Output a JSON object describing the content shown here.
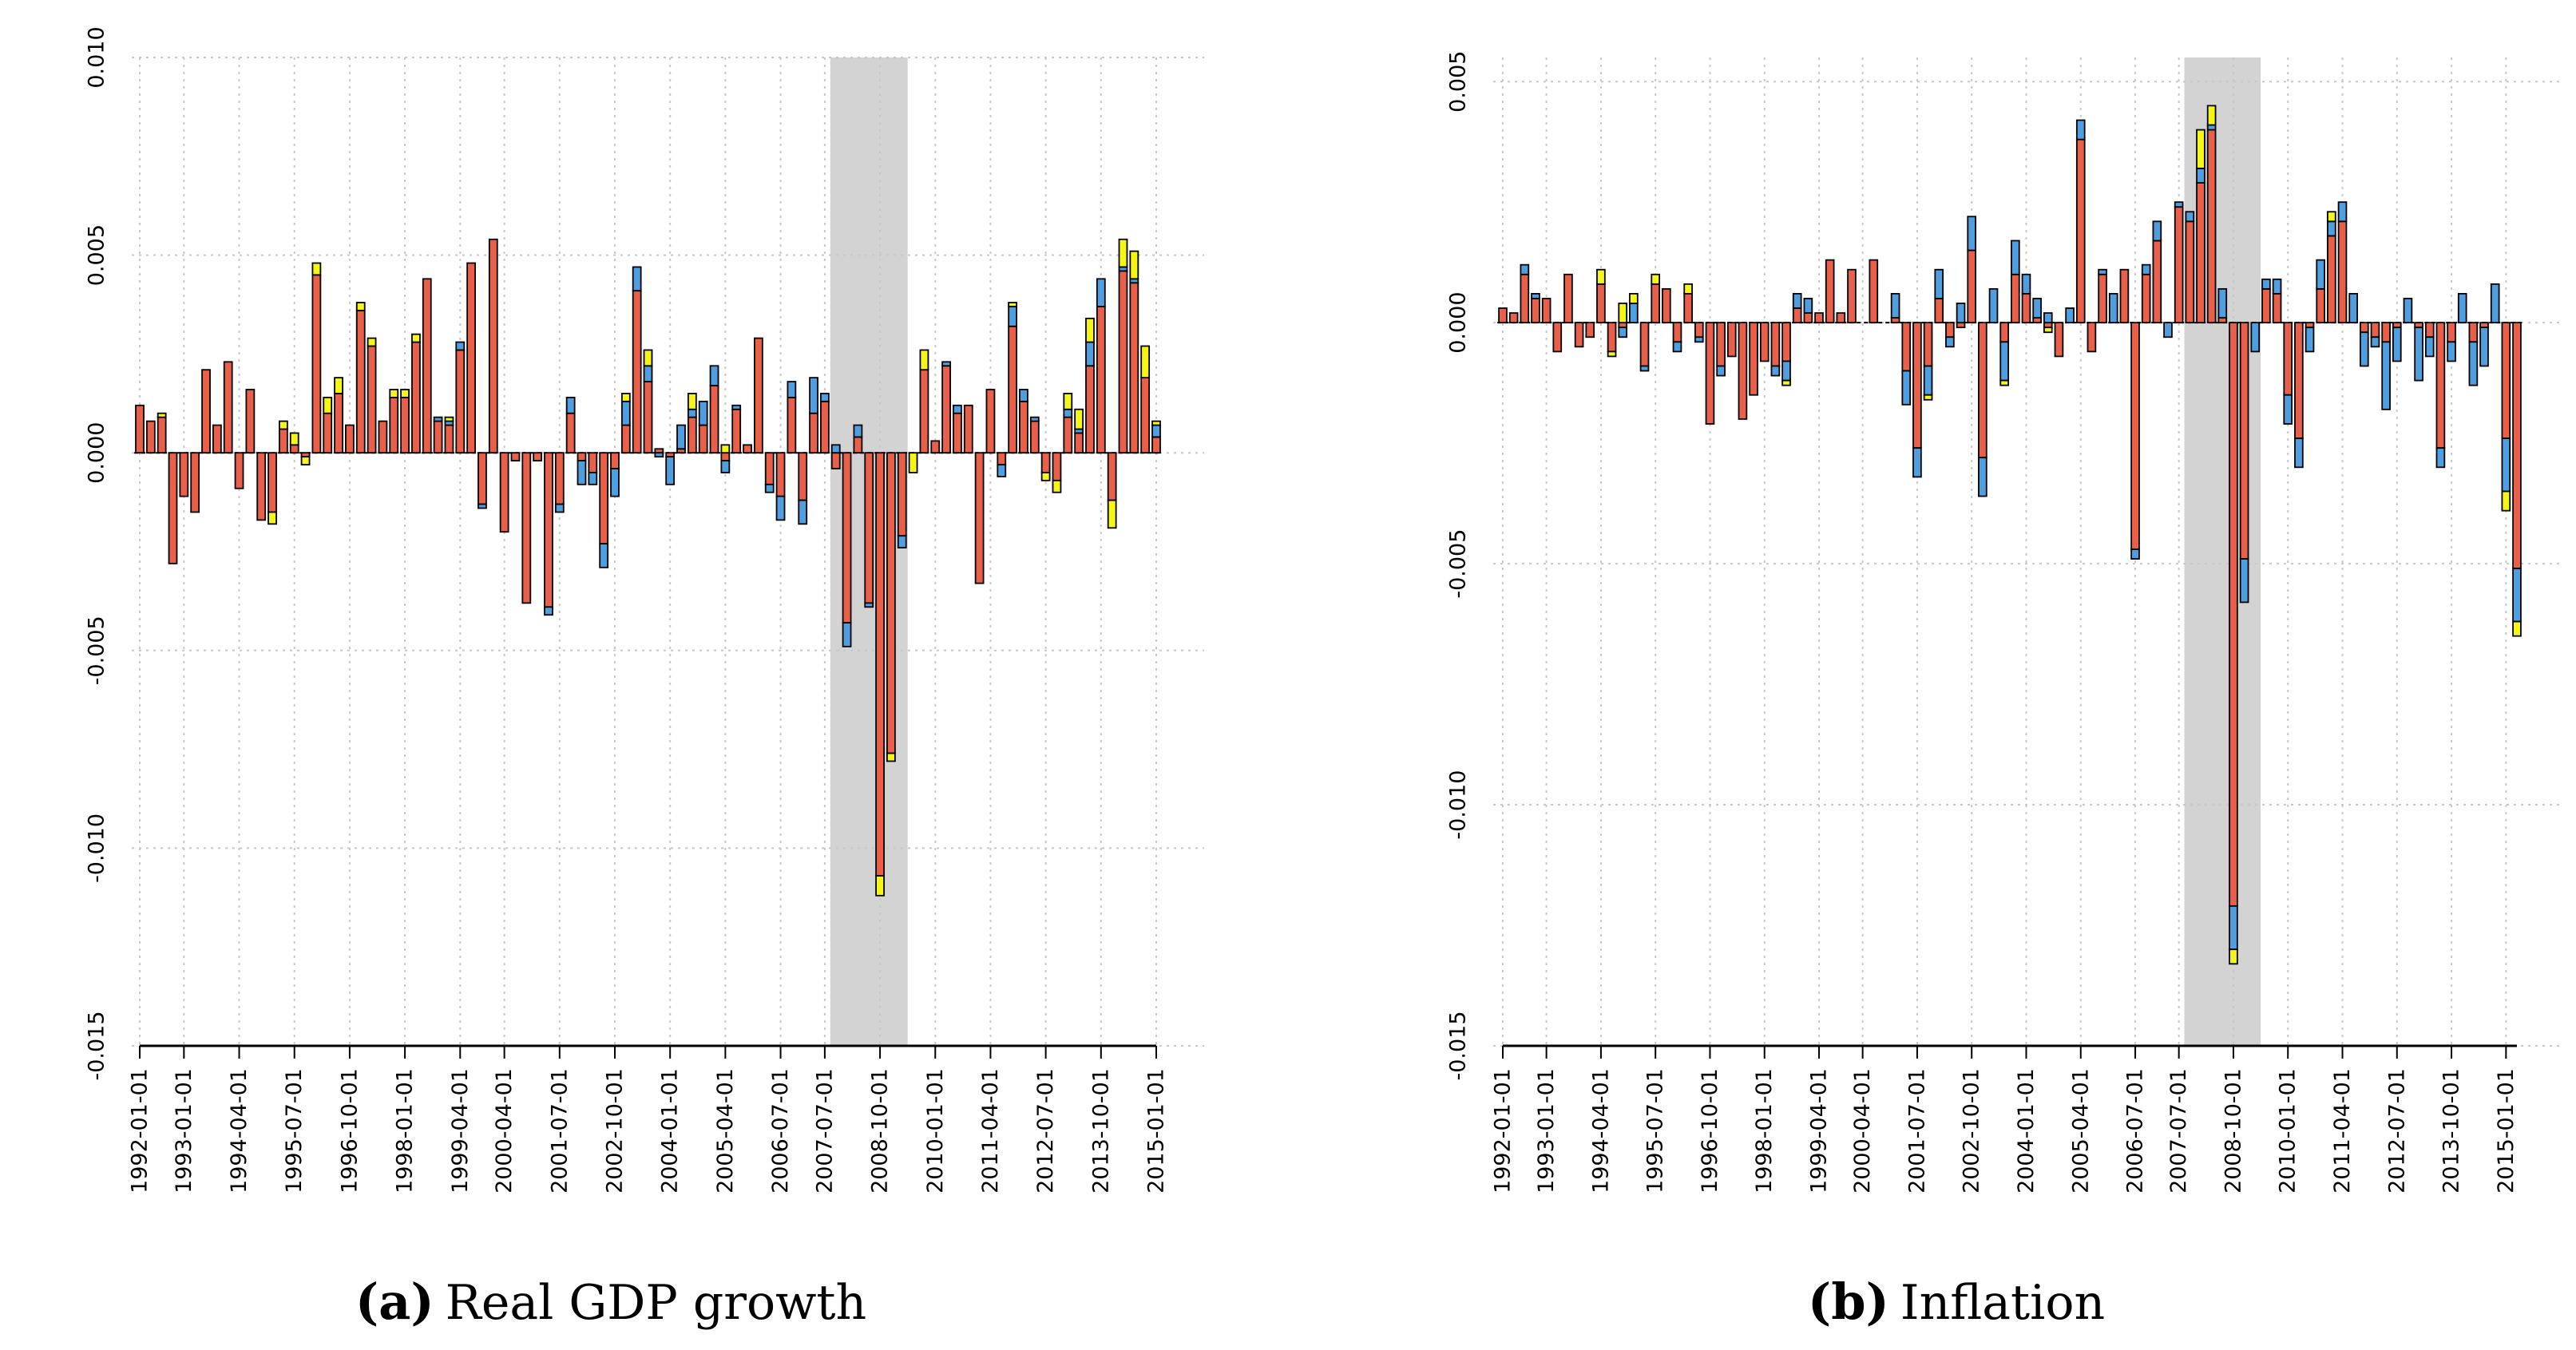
{
  "colors": {
    "red": "#e9604a",
    "blue": "#4f9fe0",
    "yellow": "#f5f518",
    "grid": "#c8c8c8",
    "recession": "#d3d3d3"
  },
  "chart_data": [
    {
      "type": "bar",
      "panel_letter": "(a)",
      "title": "Real GDP growth",
      "ylim": [
        -0.015,
        0.01
      ],
      "y_ticks": [
        "0.010",
        "0.005",
        "0.000",
        "-0.005",
        "-0.010",
        "-0.015"
      ],
      "y_tick_values": [
        0.01,
        0.005,
        0.0,
        -0.005,
        -0.01,
        -0.015
      ],
      "x_tick_labels": [
        "1992-01-01",
        "1993-01-01",
        "1994-04-01",
        "1995-07-01",
        "1996-10-01",
        "1998-01-01",
        "1999-04-01",
        "2000-04-01",
        "2001-07-01",
        "2002-10-01",
        "2004-01-01",
        "2005-04-01",
        "2006-07-01",
        "2007-07-01",
        "2008-10-01",
        "2010-01-01",
        "2011-04-01",
        "2012-07-01",
        "2013-10-01",
        "2015-01-01"
      ],
      "x_tick_index": [
        0,
        4,
        9,
        14,
        19,
        24,
        29,
        33,
        38,
        43,
        48,
        53,
        58,
        62,
        67,
        72,
        77,
        82,
        87,
        92
      ],
      "recession_index": [
        63,
        69
      ],
      "series_names": [
        "red",
        "blue",
        "yellow"
      ],
      "values": [
        [
          0.0012,
          0,
          0
        ],
        [
          0.0008,
          0,
          0
        ],
        [
          0.0009,
          0,
          0.0001
        ],
        [
          -0.0028,
          0,
          0
        ],
        [
          -0.0011,
          0,
          0
        ],
        [
          -0.0015,
          0,
          0
        ],
        [
          0.0021,
          0,
          0
        ],
        [
          0.0007,
          0,
          0
        ],
        [
          0.0023,
          0,
          0
        ],
        [
          -0.0009,
          0,
          0
        ],
        [
          0.0016,
          0,
          0
        ],
        [
          -0.0017,
          0,
          0
        ],
        [
          -0.0015,
          0,
          -0.0003
        ],
        [
          0.0006,
          0,
          0.0002
        ],
        [
          0.0002,
          0,
          0.0003
        ],
        [
          -0.0001,
          0,
          -0.0002
        ],
        [
          0.0045,
          0,
          0.0003
        ],
        [
          0.001,
          0,
          0.0004
        ],
        [
          0.0015,
          0,
          0.0004
        ],
        [
          0.0007,
          0,
          0
        ],
        [
          0.0036,
          0,
          0.0002
        ],
        [
          0.0027,
          0,
          0.0002
        ],
        [
          0.0008,
          0,
          0
        ],
        [
          0.0014,
          0,
          0.0002
        ],
        [
          0.0014,
          0,
          0.0002
        ],
        [
          0.0028,
          0,
          0.0002
        ],
        [
          0.0044,
          0,
          0
        ],
        [
          0.0008,
          0.0001,
          0
        ],
        [
          0.0007,
          0.0001,
          0.0001
        ],
        [
          0.0026,
          0.0002,
          0
        ],
        [
          0.0048,
          0,
          0
        ],
        [
          -0.0013,
          -0.0001,
          0
        ],
        [
          0.0054,
          0,
          0
        ],
        [
          -0.002,
          0,
          0
        ],
        [
          -0.0002,
          0,
          0
        ],
        [
          -0.0038,
          0,
          0
        ],
        [
          -0.0002,
          0,
          0
        ],
        [
          -0.0039,
          -0.0002,
          0
        ],
        [
          -0.0013,
          -0.0002,
          0
        ],
        [
          0.001,
          0.0004,
          0
        ],
        [
          -0.0002,
          -0.0006,
          0
        ],
        [
          -0.0005,
          -0.0003,
          0
        ],
        [
          -0.0023,
          -0.0006,
          0
        ],
        [
          -0.0004,
          -0.0007,
          0
        ],
        [
          0.0007,
          0.0006,
          0.0002
        ],
        [
          0.0041,
          0.0006,
          0
        ],
        [
          0.0018,
          0.0004,
          0.0004
        ],
        [
          0.0001,
          -0.0001,
          0
        ],
        [
          -0.0001,
          -0.0007,
          0
        ],
        [
          0.0001,
          0.0006,
          0
        ],
        [
          0.0009,
          0.0002,
          0.0004
        ],
        [
          0.0007,
          0.0006,
          0
        ],
        [
          0.0017,
          0.0005,
          0
        ],
        [
          -0.0002,
          -0.0003,
          0.0002
        ],
        [
          0.0011,
          0.0001,
          0
        ],
        [
          0.0002,
          0,
          0
        ],
        [
          0.0029,
          0,
          0
        ],
        [
          -0.0008,
          -0.0002,
          0
        ],
        [
          -0.0011,
          -0.0006,
          0
        ],
        [
          0.0014,
          0.0004,
          0
        ],
        [
          -0.0012,
          -0.0006,
          0
        ],
        [
          0.001,
          0.0009,
          0
        ],
        [
          0.0013,
          0.0002,
          0
        ],
        [
          -0.0004,
          0.0002,
          0
        ],
        [
          -0.0043,
          -0.0006,
          0
        ],
        [
          0.0004,
          0.0003,
          0
        ],
        [
          -0.0038,
          -0.0001,
          0
        ],
        [
          -0.0107,
          0,
          -0.0005
        ],
        [
          -0.0076,
          0,
          -0.0002
        ],
        [
          -0.0021,
          -0.0003,
          0
        ],
        [
          0,
          0,
          -0.0005
        ],
        [
          0.0021,
          0,
          0.0005
        ],
        [
          0.0003,
          0,
          0
        ],
        [
          0.0022,
          0.0001,
          0
        ],
        [
          0.001,
          0.0002,
          0
        ],
        [
          0.0012,
          0,
          0
        ],
        [
          -0.0033,
          0,
          0
        ],
        [
          0.0016,
          0,
          0
        ],
        [
          -0.0003,
          -0.0003,
          0
        ],
        [
          0.0032,
          0.0005,
          0.0001
        ],
        [
          0.0013,
          0.0003,
          0
        ],
        [
          0.0008,
          0.0001,
          0
        ],
        [
          -0.0005,
          0,
          -0.0002
        ],
        [
          -0.0007,
          0,
          -0.0003
        ],
        [
          0.0009,
          0.0002,
          0.0004
        ],
        [
          0.0005,
          0.0001,
          0.0005
        ],
        [
          0.0022,
          0.0006,
          0.0006
        ],
        [
          0.0037,
          0.0007,
          0
        ],
        [
          -0.0012,
          0,
          -0.0007
        ],
        [
          0.0046,
          0.0001,
          0.0007
        ],
        [
          0.0043,
          0.0001,
          0.0007
        ],
        [
          0.0019,
          0,
          0.0008
        ],
        [
          0.0004,
          0.0003,
          0.0001
        ]
      ]
    },
    {
      "type": "bar",
      "panel_letter": "(b)",
      "title": "Inflation",
      "ylim": [
        -0.015,
        0.0055
      ],
      "y_ticks": [
        "0.005",
        "0.000",
        "-0.005",
        "-0.010",
        "-0.015"
      ],
      "y_tick_values": [
        0.005,
        0.0,
        -0.005,
        -0.01,
        -0.015
      ],
      "x_tick_labels": [
        "1992-01-01",
        "1993-01-01",
        "1994-04-01",
        "1995-07-01",
        "1996-10-01",
        "1998-01-01",
        "1999-04-01",
        "2000-04-01",
        "2001-07-01",
        "2002-10-01",
        "2004-01-01",
        "2005-04-01",
        "2006-07-01",
        "2007-07-01",
        "2008-10-01",
        "2010-01-01",
        "2011-04-01",
        "2012-07-01",
        "2013-10-01",
        "2015-01-01"
      ],
      "x_tick_index": [
        0,
        4,
        9,
        14,
        19,
        24,
        29,
        33,
        38,
        43,
        48,
        53,
        58,
        62,
        67,
        72,
        77,
        82,
        87,
        92
      ],
      "recession_index": [
        63,
        69
      ],
      "series_names": [
        "red",
        "blue",
        "yellow"
      ],
      "values": [
        [
          0.0003,
          0,
          0
        ],
        [
          0.0002,
          0,
          0
        ],
        [
          0.001,
          0.0002,
          0
        ],
        [
          0.0005,
          0.0001,
          0
        ],
        [
          0.0005,
          0,
          0
        ],
        [
          -0.0006,
          0,
          0
        ],
        [
          0.001,
          0,
          0
        ],
        [
          -0.0005,
          0,
          0
        ],
        [
          -0.0003,
          0,
          0
        ],
        [
          0.0008,
          0,
          0.0003
        ],
        [
          -0.0006,
          0,
          -0.0001
        ],
        [
          -0.0001,
          -0.0002,
          0.0004
        ],
        [
          0,
          0.0004,
          0.0002
        ],
        [
          -0.0009,
          -0.0001,
          0
        ],
        [
          0.0008,
          0,
          0.0002
        ],
        [
          0.0007,
          0,
          0
        ],
        [
          -0.0004,
          -0.0002,
          0
        ],
        [
          0.0006,
          0,
          0.0002
        ],
        [
          -0.0003,
          -0.0001,
          0
        ],
        [
          -0.0021,
          0,
          0
        ],
        [
          -0.0009,
          -0.0002,
          0
        ],
        [
          -0.0007,
          0,
          0
        ],
        [
          -0.002,
          0,
          0
        ],
        [
          -0.0015,
          0,
          0
        ],
        [
          -0.0008,
          0,
          0
        ],
        [
          -0.0009,
          -0.0002,
          0
        ],
        [
          -0.0008,
          -0.0004,
          -0.0001
        ],
        [
          0.0003,
          0.0003,
          0
        ],
        [
          0.0002,
          0.0003,
          0
        ],
        [
          0.0002,
          0,
          0
        ],
        [
          0.0013,
          0,
          0
        ],
        [
          0.0002,
          0,
          0
        ],
        [
          0.0011,
          0,
          0
        ],
        [
          0,
          0,
          0
        ],
        [
          0.0013,
          0,
          0
        ],
        [
          0,
          0,
          0
        ],
        [
          0.0001,
          0.0005,
          0
        ],
        [
          -0.001,
          -0.0007,
          0
        ],
        [
          -0.0026,
          -0.0006,
          0
        ],
        [
          -0.0009,
          -0.0006,
          -0.0001
        ],
        [
          0.0005,
          0.0006,
          0
        ],
        [
          -0.0003,
          -0.0002,
          0
        ],
        [
          -0.0001,
          0.0004,
          0
        ],
        [
          0.0015,
          0.0007,
          0
        ],
        [
          -0.0028,
          -0.0008,
          0
        ],
        [
          0,
          0.0007,
          0
        ],
        [
          -0.0004,
          -0.0008,
          -0.0001
        ],
        [
          0.001,
          0.0007,
          0
        ],
        [
          0.0006,
          0.0004,
          0
        ],
        [
          0.0001,
          0.0004,
          0
        ],
        [
          -0.0001,
          0.0002,
          -0.0001
        ],
        [
          -0.0007,
          0,
          0
        ],
        [
          0,
          0.0003,
          0
        ],
        [
          0.0038,
          0.0004,
          0
        ],
        [
          -0.0006,
          0,
          0
        ],
        [
          0.001,
          0.0001,
          0
        ],
        [
          0,
          0.0006,
          0
        ],
        [
          0.0011,
          0,
          0
        ],
        [
          -0.0047,
          -0.0002,
          0
        ],
        [
          0.001,
          0.0002,
          0
        ],
        [
          0.0017,
          0.0004,
          0
        ],
        [
          0,
          -0.0003,
          0
        ],
        [
          0.0024,
          0.0001,
          0
        ],
        [
          0.0021,
          0.0002,
          0
        ],
        [
          0.0029,
          0.0003,
          0.0008
        ],
        [
          0.004,
          0.0001,
          0.0004
        ],
        [
          0.0001,
          0.0006,
          0
        ],
        [
          -0.0121,
          -0.0009,
          -0.0003
        ],
        [
          -0.0049,
          -0.0009,
          0
        ],
        [
          0,
          -0.0006,
          0
        ],
        [
          0.0007,
          0.0002,
          0
        ],
        [
          0.0006,
          0.0003,
          0
        ],
        [
          -0.0015,
          -0.0006,
          0
        ],
        [
          -0.0024,
          -0.0006,
          0
        ],
        [
          -0.0001,
          -0.0005,
          0
        ],
        [
          0.0007,
          0.0006,
          0
        ],
        [
          0.0018,
          0.0003,
          0.0002
        ],
        [
          0.0021,
          0.0004,
          0
        ],
        [
          0,
          0.0006,
          0
        ],
        [
          -0.0002,
          -0.0007,
          0
        ],
        [
          -0.0003,
          -0.0002,
          0
        ],
        [
          -0.0004,
          -0.0014,
          0
        ],
        [
          -0.0001,
          -0.0007,
          0
        ],
        [
          0,
          0.0005,
          0
        ],
        [
          -0.0001,
          -0.0011,
          0
        ],
        [
          -0.0003,
          -0.0004,
          0
        ],
        [
          -0.0026,
          -0.0004,
          0
        ],
        [
          -0.0004,
          -0.0004,
          0
        ],
        [
          0,
          0.0006,
          0
        ],
        [
          -0.0004,
          -0.0009,
          0
        ],
        [
          -0.0001,
          -0.0008,
          0
        ],
        [
          0,
          0.0008,
          0
        ],
        [
          -0.0024,
          -0.0011,
          -0.0004
        ],
        [
          -0.0051,
          -0.0011,
          -0.0003
        ]
      ]
    }
  ]
}
